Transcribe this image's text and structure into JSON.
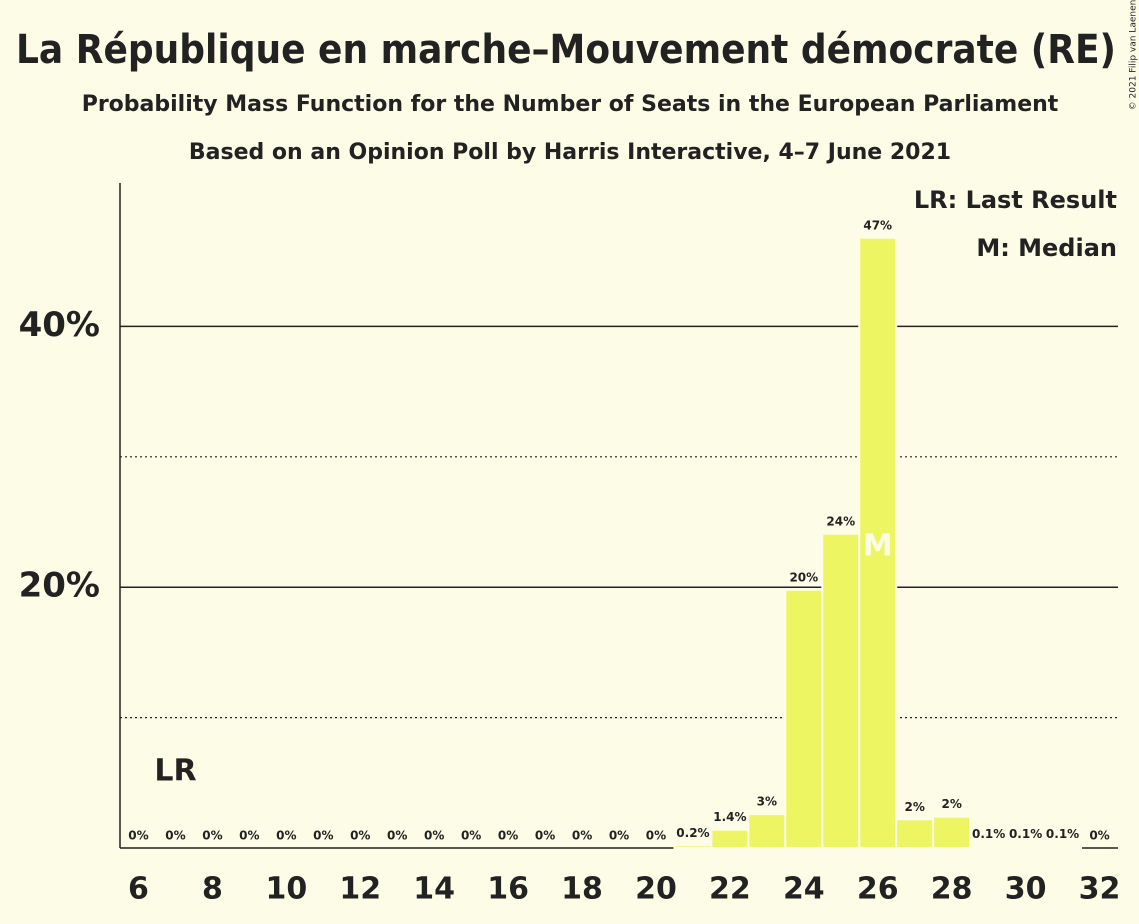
{
  "chart_data": {
    "type": "bar",
    "title": "La République en marche–Mouvement démocrate (RE)",
    "subtitle": "Probability Mass Function for the Number of Seats in the European Parliament",
    "subtitle2": "Based on an Opinion Poll by Harris Interactive, 4–7 June 2021",
    "copyright": "© 2021 Filip van Laenen",
    "legend": [
      "LR: Last Result",
      "M: Median"
    ],
    "annotations": [
      {
        "text": "LR",
        "x": 7
      },
      {
        "text": "M",
        "x": 26
      }
    ],
    "x": [
      6,
      7,
      8,
      9,
      10,
      11,
      12,
      13,
      14,
      15,
      16,
      17,
      18,
      19,
      20,
      21,
      22,
      23,
      24,
      25,
      26,
      27,
      28,
      29,
      30,
      31,
      32
    ],
    "values": [
      0,
      0,
      0,
      0,
      0,
      0,
      0,
      0,
      0,
      0,
      0,
      0,
      0,
      0,
      0,
      0.2,
      1.4,
      2.6,
      19.8,
      24.1,
      46.8,
      2.2,
      2.4,
      0.1,
      0.1,
      0.1,
      0
    ],
    "value_labels": [
      "0%",
      "0%",
      "0%",
      "0%",
      "0%",
      "0%",
      "0%",
      "0%",
      "0%",
      "0%",
      "0%",
      "0%",
      "0%",
      "0%",
      "0%",
      "0.2%",
      "1.4%",
      "3%",
      "20%",
      "24%",
      "47%",
      "2%",
      "2%",
      "0.1%",
      "0.1%",
      "0.1%",
      "0%"
    ],
    "color": "#edf562",
    "xlim": [
      5.5,
      32.5
    ],
    "xticks": [
      6,
      8,
      10,
      12,
      14,
      16,
      18,
      20,
      22,
      24,
      26,
      28,
      30,
      32
    ],
    "ylim": [
      0,
      51
    ],
    "yticks": [
      {
        "value": 20,
        "label": "20%"
      },
      {
        "value": 40,
        "label": "40%"
      }
    ],
    "minor_yticks": [
      10,
      30
    ],
    "grid": true
  }
}
